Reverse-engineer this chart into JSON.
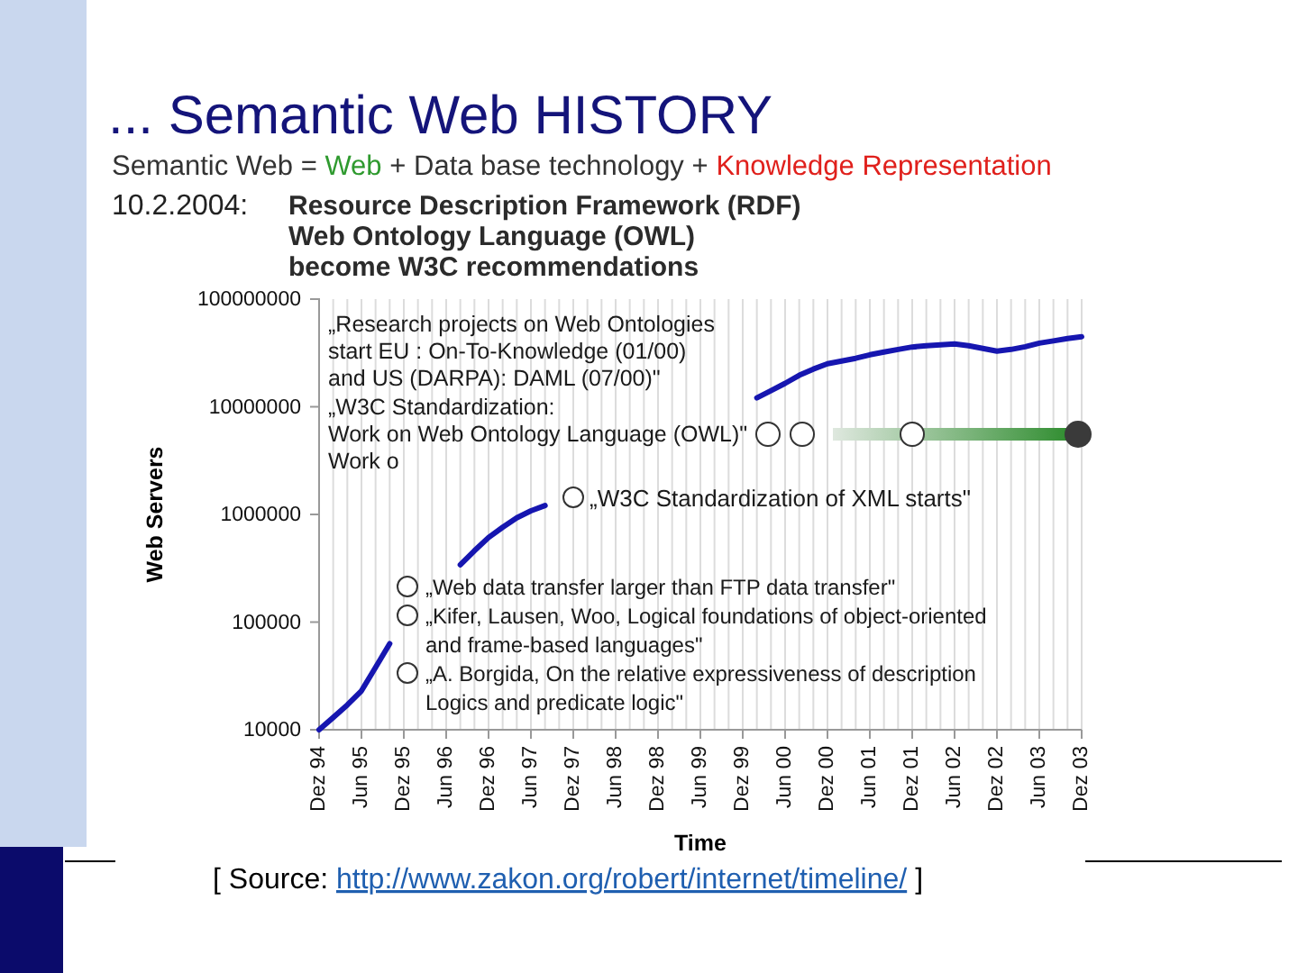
{
  "chart_data": {
    "type": "line",
    "title": "... Semantic Web HISTORY",
    "xlabel": "Time",
    "ylabel": "Web Servers",
    "categories": [
      "Dez 94",
      null,
      null,
      "Jun 95",
      null,
      null,
      "Dez 95",
      null,
      null,
      "Jun 96",
      null,
      null,
      "Dez 96",
      null,
      null,
      "Jun 97",
      null,
      null,
      "Dez 97",
      null,
      null,
      "Jun 98",
      null,
      null,
      "Dez 98",
      null,
      null,
      "Jun 99",
      null,
      null,
      "Dez 99",
      null,
      null,
      "Jun 00",
      null,
      null,
      "Dez 00",
      null,
      null,
      "Jun 01",
      null,
      null,
      "Dez 01",
      null,
      null,
      "Jun 02",
      null,
      null,
      "Dez 02",
      null,
      null,
      "Jun 03",
      null,
      null,
      "Dez 03"
    ],
    "values": [
      10000,
      13000,
      17000,
      23000,
      38000,
      63000,
      null,
      null,
      null,
      null,
      340000,
      460000,
      610000,
      760000,
      930000,
      1080000,
      1210000,
      null,
      null,
      null,
      null,
      null,
      null,
      null,
      null,
      null,
      null,
      null,
      null,
      null,
      null,
      12100000,
      14100000,
      16500000,
      19600000,
      22400000,
      25100000,
      26600000,
      28200000,
      30400000,
      32200000,
      34100000,
      35900000,
      36900000,
      37600000,
      38300000,
      36900000,
      34800000,
      32900000,
      34100000,
      36100000,
      39000000,
      40900000,
      43000000,
      44700000
    ],
    "color": "#1616b0",
    "log": true,
    "ylim": [
      10000,
      100000000
    ],
    "yticks": [
      10000,
      100000,
      1000000,
      10000000,
      100000000
    ],
    "grid": "x",
    "annotations": [
      "10.2.2004:",
      "Resource Description Framework (RDF)",
      "Web Ontology Language (OWL)",
      "become W3C recommendations",
      "Semantic Web =",
      "Web",
      "+ Data base technology",
      "+",
      "Knowledge Representation",
      "„Research projects on Web Ontologies",
      "start EU : On-To-Knowledge (01/00)",
      "and US (DARPA): DAML (07/00)\"",
      "„W3C Standardization:",
      "Work on Web Ontology Language (OWL)\"",
      "Work o",
      "„W3C Standardization of XML starts\"",
      "„Web data transfer larger than FTP data transfer\"",
      "„Kifer, Lausen, Woo, Logical foundations of object-oriented",
      "and frame-based languages\"",
      "„A. Borgida, On the relative expressiveness of description",
      "Logics and predicate logic\"",
      "[ Source:",
      "http://www.zakon.org/robert/internet/timeline/",
      "]"
    ]
  }
}
